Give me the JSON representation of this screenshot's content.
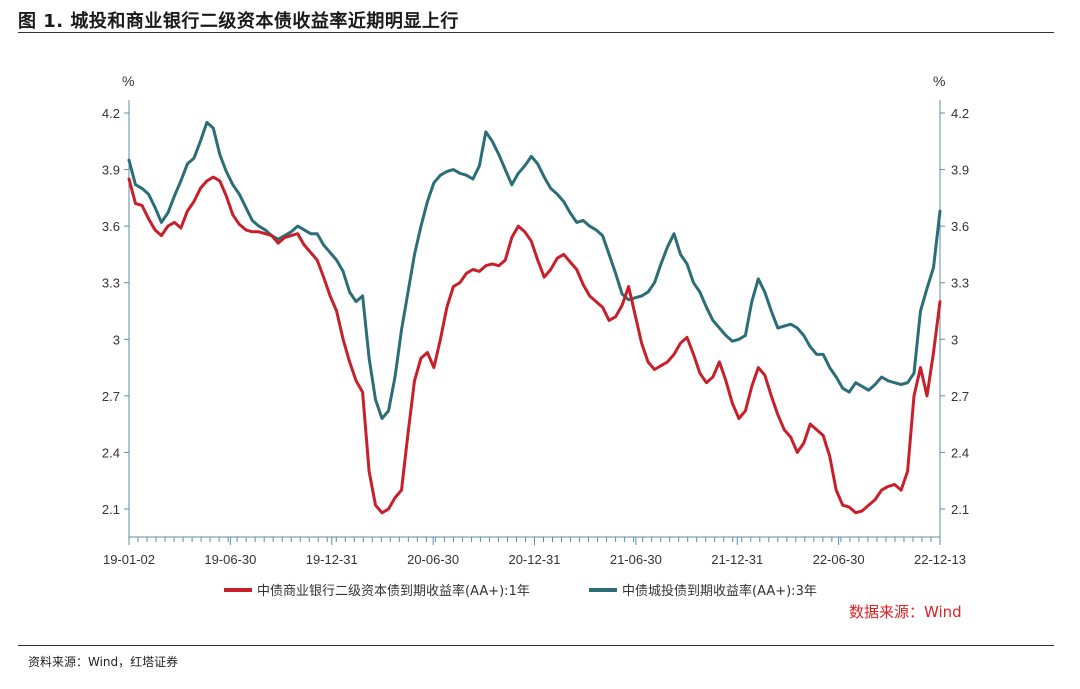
{
  "title": "图 1. 城投和商业银行二级资本债收益率近期明显上行",
  "footer": "资料来源：Wind，红塔证券",
  "chart_data": {
    "type": "line",
    "y_unit_left": "%",
    "y_unit_right": "%",
    "ylim": [
      2.1,
      4.2
    ],
    "yticks": [
      "4.2",
      "3.9",
      "3.6",
      "3.3",
      "3",
      "2.7",
      "2.4",
      "2.1"
    ],
    "ytick_values": [
      4.2,
      3.9,
      3.6,
      3.3,
      3.0,
      2.7,
      2.4,
      2.1
    ],
    "xticks": [
      "19-01-02",
      "19-06-30",
      "19-12-31",
      "20-06-30",
      "20-12-31",
      "21-06-30",
      "21-12-31",
      "22-06-30",
      "22-12-13"
    ],
    "grid": false,
    "legend_position": "bottom",
    "source_note": "数据来源：Wind",
    "source_note_color": "#e02020",
    "series": [
      {
        "name": "中债商业银行二级资本债到期收益率(AA+):1年",
        "color": "#c8202a",
        "values": [
          3.85,
          3.72,
          3.71,
          3.64,
          3.58,
          3.55,
          3.6,
          3.62,
          3.59,
          3.68,
          3.73,
          3.8,
          3.84,
          3.86,
          3.84,
          3.76,
          3.66,
          3.61,
          3.58,
          3.57,
          3.57,
          3.56,
          3.55,
          3.51,
          3.54,
          3.55,
          3.56,
          3.5,
          3.46,
          3.42,
          3.33,
          3.23,
          3.15,
          3.0,
          2.88,
          2.78,
          2.72,
          2.3,
          2.12,
          2.08,
          2.1,
          2.16,
          2.2,
          2.5,
          2.78,
          2.9,
          2.93,
          2.85,
          3.0,
          3.17,
          3.28,
          3.3,
          3.35,
          3.37,
          3.36,
          3.39,
          3.4,
          3.39,
          3.42,
          3.54,
          3.6,
          3.57,
          3.52,
          3.42,
          3.33,
          3.37,
          3.43,
          3.45,
          3.41,
          3.37,
          3.29,
          3.23,
          3.2,
          3.17,
          3.1,
          3.12,
          3.18,
          3.28,
          3.13,
          2.98,
          2.88,
          2.84,
          2.86,
          2.88,
          2.92,
          2.98,
          3.01,
          2.92,
          2.82,
          2.77,
          2.8,
          2.88,
          2.78,
          2.66,
          2.58,
          2.62,
          2.75,
          2.85,
          2.81,
          2.7,
          2.6,
          2.52,
          2.48,
          2.4,
          2.45,
          2.55,
          2.52,
          2.49,
          2.38,
          2.2,
          2.12,
          2.11,
          2.08,
          2.09,
          2.12,
          2.15,
          2.2,
          2.22,
          2.23,
          2.2,
          2.3,
          2.7,
          2.85,
          2.7,
          2.93,
          3.2
        ]
      },
      {
        "name": "中债城投债到期收益率(AA+):3年",
        "color": "#2b6e78",
        "values": [
          3.95,
          3.82,
          3.8,
          3.77,
          3.7,
          3.62,
          3.67,
          3.76,
          3.84,
          3.93,
          3.96,
          4.05,
          4.15,
          4.12,
          3.98,
          3.89,
          3.82,
          3.77,
          3.7,
          3.63,
          3.6,
          3.58,
          3.55,
          3.53,
          3.55,
          3.57,
          3.6,
          3.58,
          3.56,
          3.56,
          3.5,
          3.46,
          3.42,
          3.36,
          3.25,
          3.2,
          3.23,
          2.9,
          2.68,
          2.58,
          2.62,
          2.8,
          3.05,
          3.25,
          3.45,
          3.6,
          3.73,
          3.83,
          3.87,
          3.89,
          3.9,
          3.88,
          3.87,
          3.85,
          3.92,
          4.1,
          4.05,
          3.98,
          3.9,
          3.82,
          3.88,
          3.92,
          3.97,
          3.93,
          3.86,
          3.8,
          3.77,
          3.73,
          3.67,
          3.62,
          3.63,
          3.6,
          3.58,
          3.55,
          3.45,
          3.35,
          3.24,
          3.21,
          3.22,
          3.23,
          3.25,
          3.3,
          3.4,
          3.49,
          3.56,
          3.45,
          3.4,
          3.3,
          3.25,
          3.17,
          3.1,
          3.06,
          3.02,
          2.99,
          3.0,
          3.02,
          3.2,
          3.32,
          3.25,
          3.15,
          3.06,
          3.07,
          3.08,
          3.06,
          3.02,
          2.96,
          2.92,
          2.92,
          2.85,
          2.8,
          2.74,
          2.72,
          2.77,
          2.75,
          2.73,
          2.76,
          2.8,
          2.78,
          2.77,
          2.76,
          2.77,
          2.82,
          3.15,
          3.27,
          3.38,
          3.68
        ]
      }
    ]
  }
}
